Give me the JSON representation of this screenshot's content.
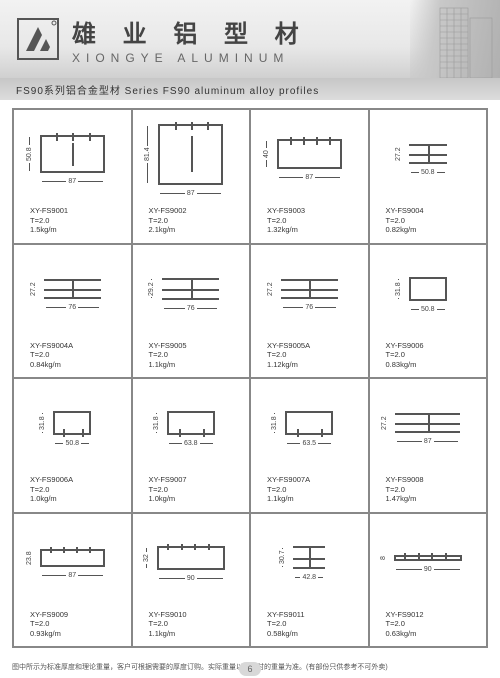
{
  "header": {
    "brand_cn": "雄 业 铝 型 材",
    "brand_en": "XIONGYE ALUMINUM"
  },
  "subheading": "FS90系列铝合金型材  Series FS90 aluminum alloy profiles",
  "footer_note": "图中所示为标准厚度和理论重量，客户可根据需要的厚度订购。实际重量以过磅时的重量为准。(有部份只供参考不可外卖)",
  "page_number": "6",
  "grid": {
    "cols": 4,
    "rows": 4,
    "border_color": "#888888"
  },
  "profiles": [
    {
      "code": "XY-FS9001",
      "t": "T=2.0",
      "wt": "1.5kg/m",
      "w": 87,
      "h": 50.8,
      "shape": "frame_top_fins"
    },
    {
      "code": "XY-FS9002",
      "t": "T=2.0",
      "wt": "2.1kg/m",
      "w": 87,
      "h": 81.4,
      "shape": "frame_top_fins"
    },
    {
      "code": "XY-FS9003",
      "t": "T=2.0",
      "wt": "1.32kg/m",
      "w": 87,
      "h": 40,
      "shape": "track"
    },
    {
      "code": "XY-FS9004",
      "t": "T=2.0",
      "wt": "0.82kg/m",
      "w": 50.8,
      "h": 27.2,
      "shape": "h_section"
    },
    {
      "code": "XY-FS9004A",
      "t": "T=2.0",
      "wt": "0.84kg/m",
      "w": 76,
      "h": 27.2,
      "shape": "h_section"
    },
    {
      "code": "XY-FS9005",
      "t": "T=2.0",
      "wt": "1.1kg/m",
      "w": 76,
      "h": 29.2,
      "shape": "h_section"
    },
    {
      "code": "XY-FS9005A",
      "t": "T=2.0",
      "wt": "1.12kg/m",
      "w": 76,
      "h": 27.2,
      "shape": "h_section"
    },
    {
      "code": "XY-FS9006",
      "t": "T=2.0",
      "wt": "0.83kg/m",
      "w": 50.8,
      "h": 31.8,
      "shape": "box"
    },
    {
      "code": "XY-FS9006A",
      "t": "T=2.0",
      "wt": "1.0kg/m",
      "w": 50.8,
      "h": 31.8,
      "shape": "box_fins"
    },
    {
      "code": "XY-FS9007",
      "t": "T=2.0",
      "wt": "1.0kg/m",
      "w": 63.8,
      "h": 31.8,
      "shape": "box_fins"
    },
    {
      "code": "XY-FS9007A",
      "t": "T=2.0",
      "wt": "1.1kg/m",
      "w": 63.5,
      "h": 31.8,
      "shape": "box_fins"
    },
    {
      "code": "XY-FS9008",
      "t": "T=2.0",
      "wt": "1.47kg/m",
      "w": 87,
      "h": 27.2,
      "shape": "h_section"
    },
    {
      "code": "XY-FS9009",
      "t": "T=2.0",
      "wt": "0.93kg/m",
      "w": 87,
      "h": 23.8,
      "shape": "flat_fins"
    },
    {
      "code": "XY-FS9010",
      "t": "T=2.0",
      "wt": "1.1kg/m",
      "w": 90,
      "h": 32,
      "shape": "flat_fins"
    },
    {
      "code": "XY-FS9011",
      "t": "T=2.0",
      "wt": "0.58kg/m",
      "w": 42.8,
      "h": 30.7,
      "shape": "h_section"
    },
    {
      "code": "XY-FS9012",
      "t": "T=2.0",
      "wt": "0.63kg/m",
      "w": 90,
      "h": 8,
      "shape": "flat_fins"
    }
  ],
  "colors": {
    "line": "#555555",
    "text": "#333333",
    "header_grad_top": "#f2f2f2",
    "header_grad_bot": "#d0d0d0"
  }
}
